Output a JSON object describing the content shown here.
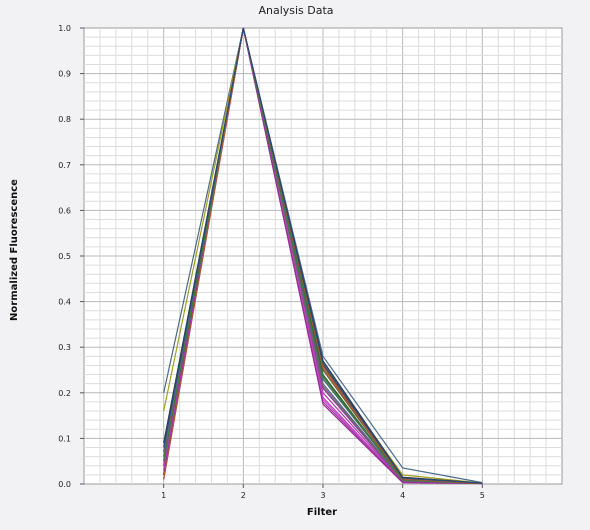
{
  "chart_data": {
    "type": "line",
    "title": "Analysis Data",
    "xlabel": "Filter",
    "ylabel": "Normalized Fluorescence",
    "x": [
      1,
      2,
      3,
      4,
      5
    ],
    "xlim": [
      0,
      6
    ],
    "ylim": [
      0,
      1.0
    ],
    "x_ticks": [
      "1",
      "2",
      "3",
      "4",
      "5"
    ],
    "y_ticks": [
      "0.0",
      "0.1",
      "0.2",
      "0.3",
      "0.4",
      "0.5",
      "0.6",
      "0.7",
      "0.8",
      "0.9",
      "1.0"
    ],
    "grid": true,
    "legend": "none",
    "series": [
      {
        "color": "#4a6a8a",
        "values": [
          0.2,
          1.0,
          0.28,
          0.035,
          0.003
        ]
      },
      {
        "color": "#a0a020",
        "values": [
          0.16,
          1.0,
          0.26,
          0.02,
          0.002
        ]
      },
      {
        "color": "#2a3a4a",
        "values": [
          0.09,
          1.0,
          0.27,
          0.015,
          0.002
        ]
      },
      {
        "color": "#6b5a2a",
        "values": [
          0.06,
          1.0,
          0.25,
          0.01,
          0.001
        ]
      },
      {
        "color": "#2a5a2a",
        "values": [
          0.04,
          1.0,
          0.24,
          0.008,
          0.001
        ]
      },
      {
        "color": "#7a4a3a",
        "values": [
          0.02,
          1.0,
          0.26,
          0.012,
          0.001
        ]
      },
      {
        "color": "#3a6a6a",
        "values": [
          0.05,
          1.0,
          0.23,
          0.01,
          0.001
        ]
      },
      {
        "color": "#5a5a9a",
        "values": [
          0.07,
          1.0,
          0.22,
          0.008,
          0.001
        ]
      },
      {
        "color": "#8a3a8a",
        "values": [
          0.03,
          1.0,
          0.21,
          0.006,
          0.001
        ]
      },
      {
        "color": "#b03ab0",
        "values": [
          0.02,
          1.0,
          0.2,
          0.005,
          0.001
        ]
      },
      {
        "color": "#c040c0",
        "values": [
          0.01,
          1.0,
          0.19,
          0.004,
          0.001
        ]
      },
      {
        "color": "#d050d0",
        "values": [
          0.03,
          1.0,
          0.185,
          0.004,
          0.001
        ]
      },
      {
        "color": "#a040a0",
        "values": [
          0.04,
          1.0,
          0.18,
          0.005,
          0.001
        ]
      },
      {
        "color": "#9a2a9a",
        "values": [
          0.02,
          1.0,
          0.175,
          0.003,
          0.001
        ]
      },
      {
        "color": "#6a6a6a",
        "values": [
          0.06,
          1.0,
          0.215,
          0.007,
          0.001
        ]
      },
      {
        "color": "#3a7a3a",
        "values": [
          0.05,
          1.0,
          0.235,
          0.009,
          0.001
        ]
      },
      {
        "color": "#aa5a3a",
        "values": [
          0.01,
          1.0,
          0.255,
          0.011,
          0.001
        ]
      },
      {
        "color": "#2a4a7a",
        "values": [
          0.08,
          1.0,
          0.265,
          0.013,
          0.002
        ]
      }
    ]
  }
}
